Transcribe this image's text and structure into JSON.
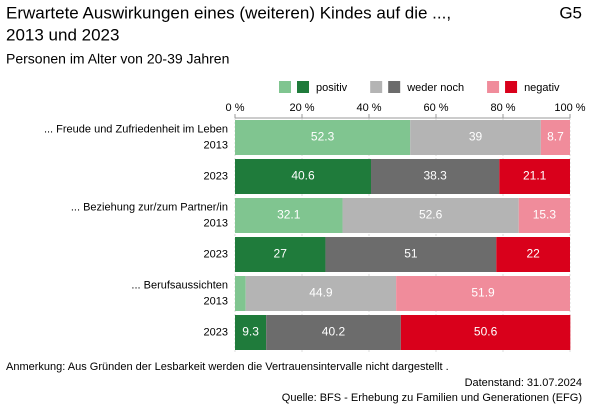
{
  "chart_data": {
    "type": "stacked-bar-horizontal",
    "title": [
      "Erwartete Auswirkungen eines (weiteren) Kindes auf die ...,",
      "2013 und 2023"
    ],
    "code": "G5",
    "subtitle": "Personen im Alter von 20-39 Jahren",
    "groups": [
      "... Freude und Zufriedenheit im Leben",
      "... Beziehung zur/zum Partner/in",
      "... Berufsaussichten"
    ],
    "categories": [
      "2013",
      "2023",
      "2013",
      "2023",
      "2013",
      "2023"
    ],
    "series": [
      {
        "name": "positiv",
        "colors": [
          "#80c590",
          "#1f7b3b"
        ],
        "values": [
          52.3,
          40.6,
          32.1,
          27,
          3.2,
          9.3
        ],
        "value_labels": [
          "52.3",
          "40.6",
          "32.1",
          "27",
          null,
          "9.3"
        ]
      },
      {
        "name": "weder noch",
        "colors": [
          "#b4b4b4",
          "#6c6c6c"
        ],
        "values": [
          39,
          38.3,
          52.6,
          51,
          44.9,
          40.2
        ]
      },
      {
        "name": "negativ",
        "colors": [
          "#f08c9b",
          "#d9001b"
        ],
        "values": [
          8.7,
          21.1,
          15.3,
          22,
          51.9,
          50.6
        ]
      }
    ],
    "xlim": [
      0,
      100
    ],
    "xticks": [
      {
        "value": 0,
        "label": "0 %"
      },
      {
        "value": 20,
        "label": "20 %"
      },
      {
        "value": 40,
        "label": "40 %"
      },
      {
        "value": 60,
        "label": "60 %"
      },
      {
        "value": 80,
        "label": "80 %"
      },
      {
        "value": 100,
        "label": "100 %"
      }
    ],
    "grid": true,
    "note": "Anmerkung: Aus Gründen der Lesbarkeit werden die Vertrauensintervalle nicht dargestellt .",
    "date": "Datenstand: 31.07.2024",
    "source": "Quelle: BFS - Erhebung zu Familien und Generationen (EFG)"
  }
}
